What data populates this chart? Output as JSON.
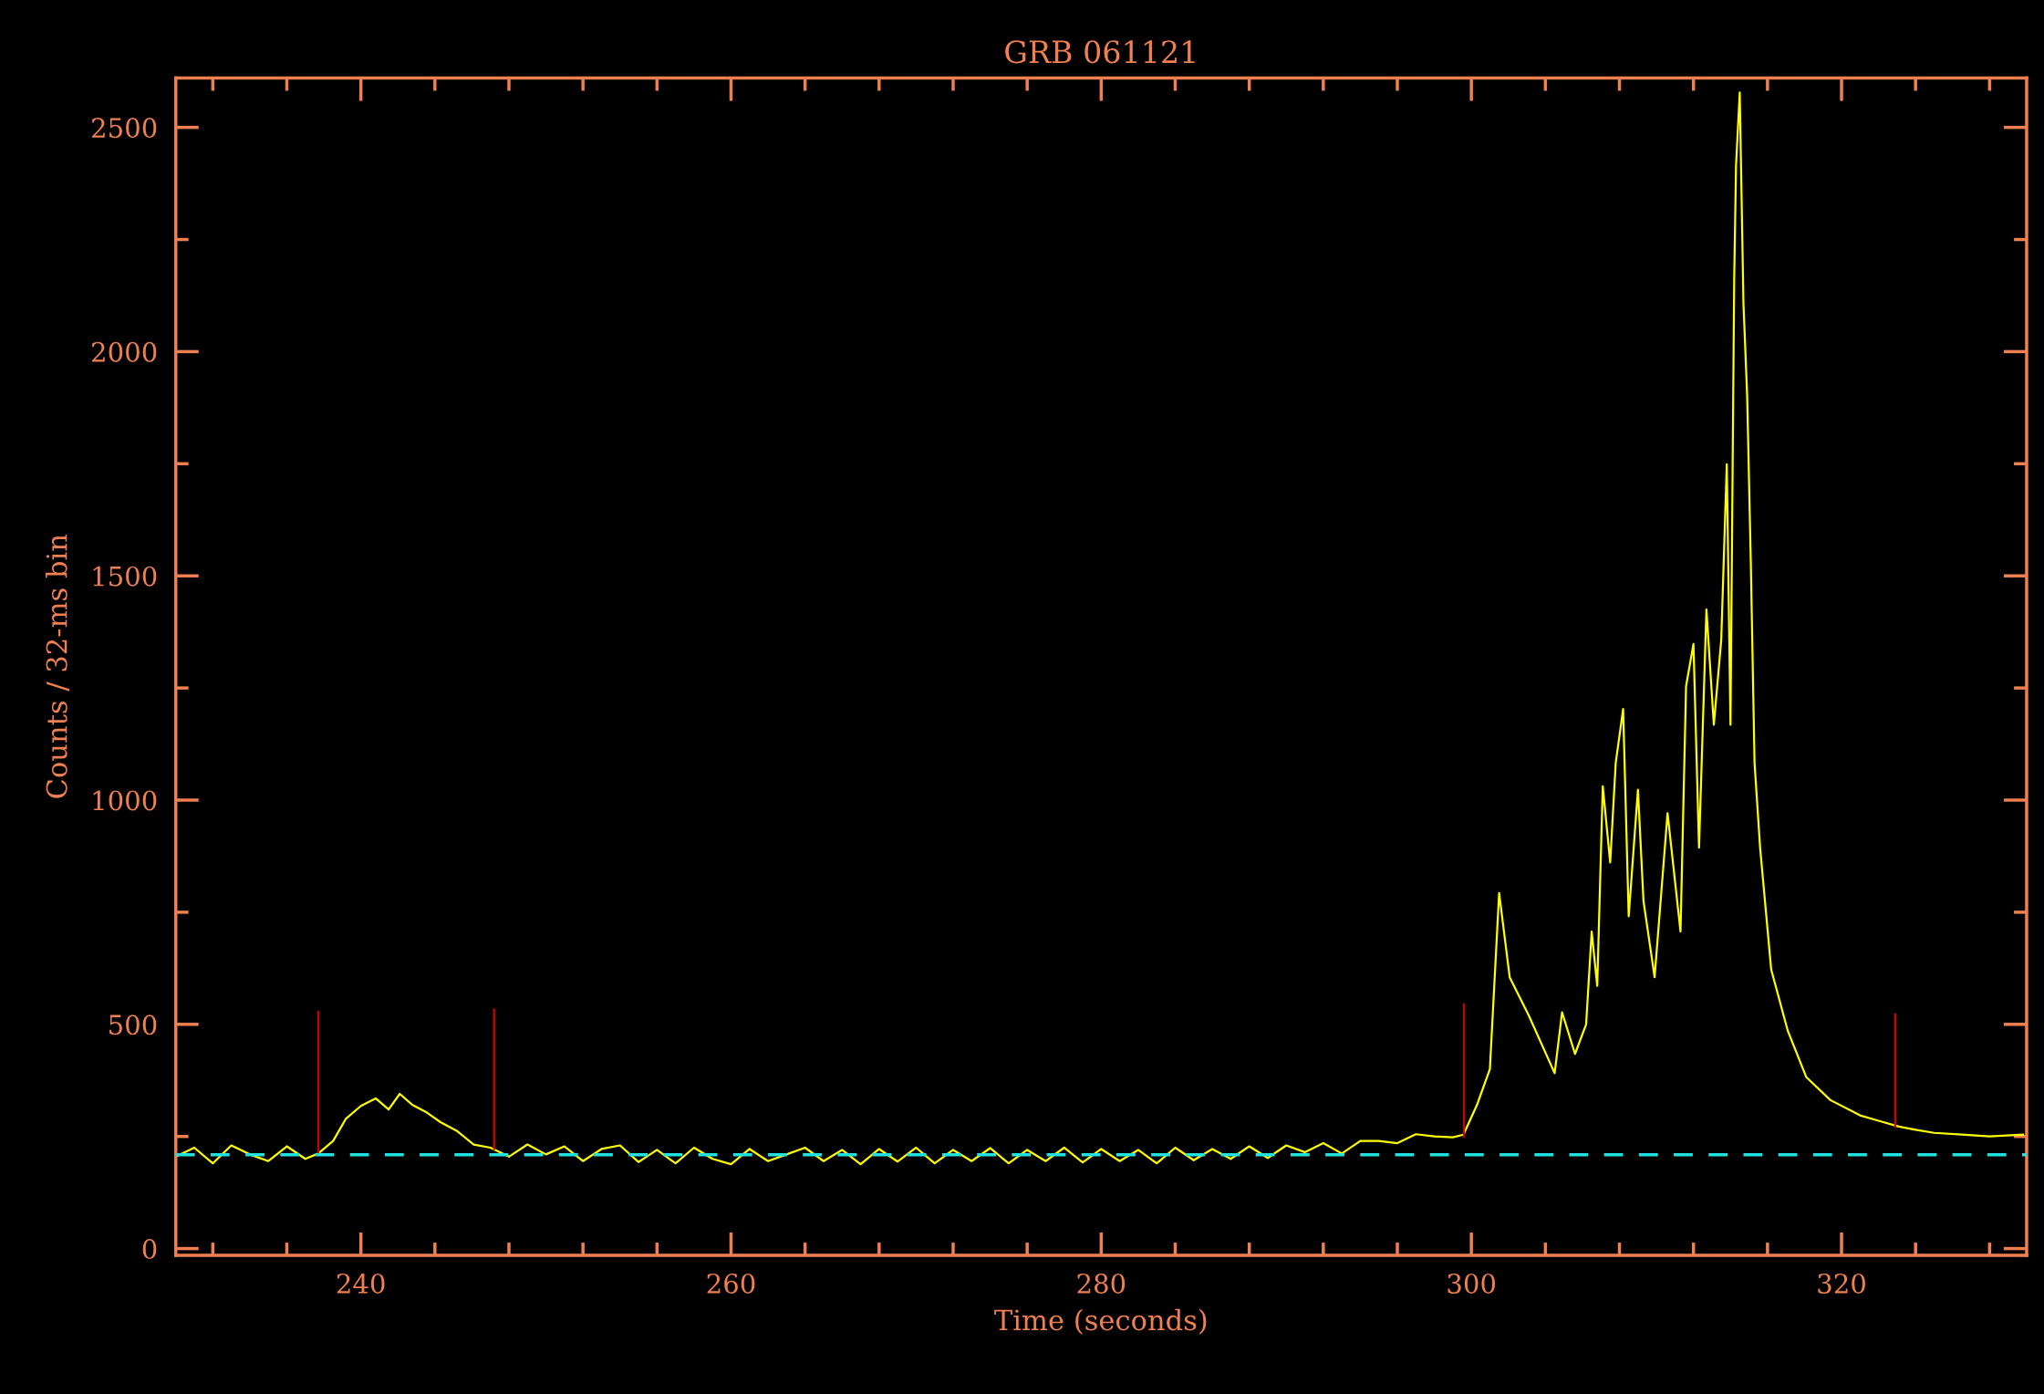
{
  "chart_data": {
    "type": "line",
    "title": "GRB 061121",
    "xlabel": "Time (seconds)",
    "ylabel": "Counts / 32-ms bin",
    "xlim": [
      230,
      330
    ],
    "ylim": [
      -15,
      2610
    ],
    "xticks": [
      240,
      260,
      280,
      300,
      320
    ],
    "yticks": [
      0,
      500,
      1000,
      1500,
      2000,
      2500
    ],
    "grid": false,
    "legend": false,
    "series": [
      {
        "color": "#ffff00",
        "x": [
          230,
          231,
          232,
          233,
          234,
          235,
          236,
          237,
          237.7,
          238.5,
          239.2,
          240,
          240.8,
          241.5,
          242.1,
          242.8,
          243.5,
          244.3,
          245.2,
          246.1,
          247,
          248,
          249,
          250,
          251,
          252,
          253,
          254,
          255,
          256,
          257,
          258,
          259,
          260,
          261,
          262,
          263,
          264,
          265,
          266,
          267,
          268,
          269,
          270,
          271,
          272,
          273,
          274,
          275,
          276,
          277,
          278,
          279,
          280,
          281,
          282,
          283,
          284,
          285,
          286,
          287,
          288,
          289,
          290,
          291,
          292,
          293,
          294,
          295,
          296,
          297,
          298,
          299,
          299.57,
          300.3,
          301.0,
          301.5,
          302.07,
          303.1,
          304.5,
          304.9,
          305.6,
          306.2,
          306.5,
          306.8,
          307.1,
          307.5,
          307.8,
          308.2,
          308.5,
          309.0,
          309.3,
          309.9,
          310.6,
          311.3,
          311.6,
          312.0,
          312.3,
          312.7,
          313.1,
          313.5,
          313.8,
          314.0,
          314.2,
          314.3,
          314.5,
          314.7,
          314.9,
          315.1,
          315.3,
          315.6,
          316.2,
          317.1,
          318.1,
          319.4,
          321.0,
          322,
          323.1,
          324,
          325,
          326.5,
          328,
          329.8
        ],
        "values": [
          205,
          225,
          190,
          230,
          210,
          195,
          228,
          200,
          212,
          240,
          290,
          318,
          335,
          310,
          345,
          320,
          305,
          282,
          262,
          232,
          225,
          205,
          232,
          210,
          228,
          195,
          222,
          230,
          193,
          220,
          190,
          225,
          200,
          188,
          222,
          195,
          210,
          225,
          195,
          220,
          188,
          222,
          194,
          225,
          190,
          220,
          195,
          224,
          190,
          220,
          195,
          225,
          192,
          222,
          195,
          220,
          190,
          225,
          197,
          222,
          200,
          228,
          202,
          230,
          215,
          235,
          212,
          240,
          240,
          235,
          255,
          250,
          248,
          254,
          320,
          400,
          793,
          605,
          520,
          391,
          527,
          434,
          500,
          707,
          586,
          1031,
          861,
          1083,
          1203,
          741,
          1023,
          775,
          605,
          971,
          707,
          1254,
          1348,
          894,
          1425,
          1168,
          1357,
          1749,
          1168,
          2160,
          2416,
          2578,
          2108,
          1903,
          1527,
          1083,
          894,
          622,
          485,
          382,
          331,
          297,
          285,
          272,
          265,
          258,
          254,
          250,
          254
        ]
      },
      {
        "color": "#cc0000",
        "x": [
          237.7,
          237.7
        ],
        "values": [
          212,
          528
        ]
      },
      {
        "color": "#cc0000",
        "x": [
          247.2,
          247.2
        ],
        "values": [
          222,
          533
        ]
      },
      {
        "color": "#cc0000",
        "x": [
          299.6,
          299.6
        ],
        "values": [
          250,
          545
        ]
      },
      {
        "color": "#cc0000",
        "x": [
          322.9,
          322.9
        ],
        "values": [
          272,
          522
        ]
      }
    ],
    "ref_lines": [
      {
        "axis": "y",
        "value": 209,
        "color": "#20e0e0",
        "line_style": "dashed"
      }
    ]
  }
}
